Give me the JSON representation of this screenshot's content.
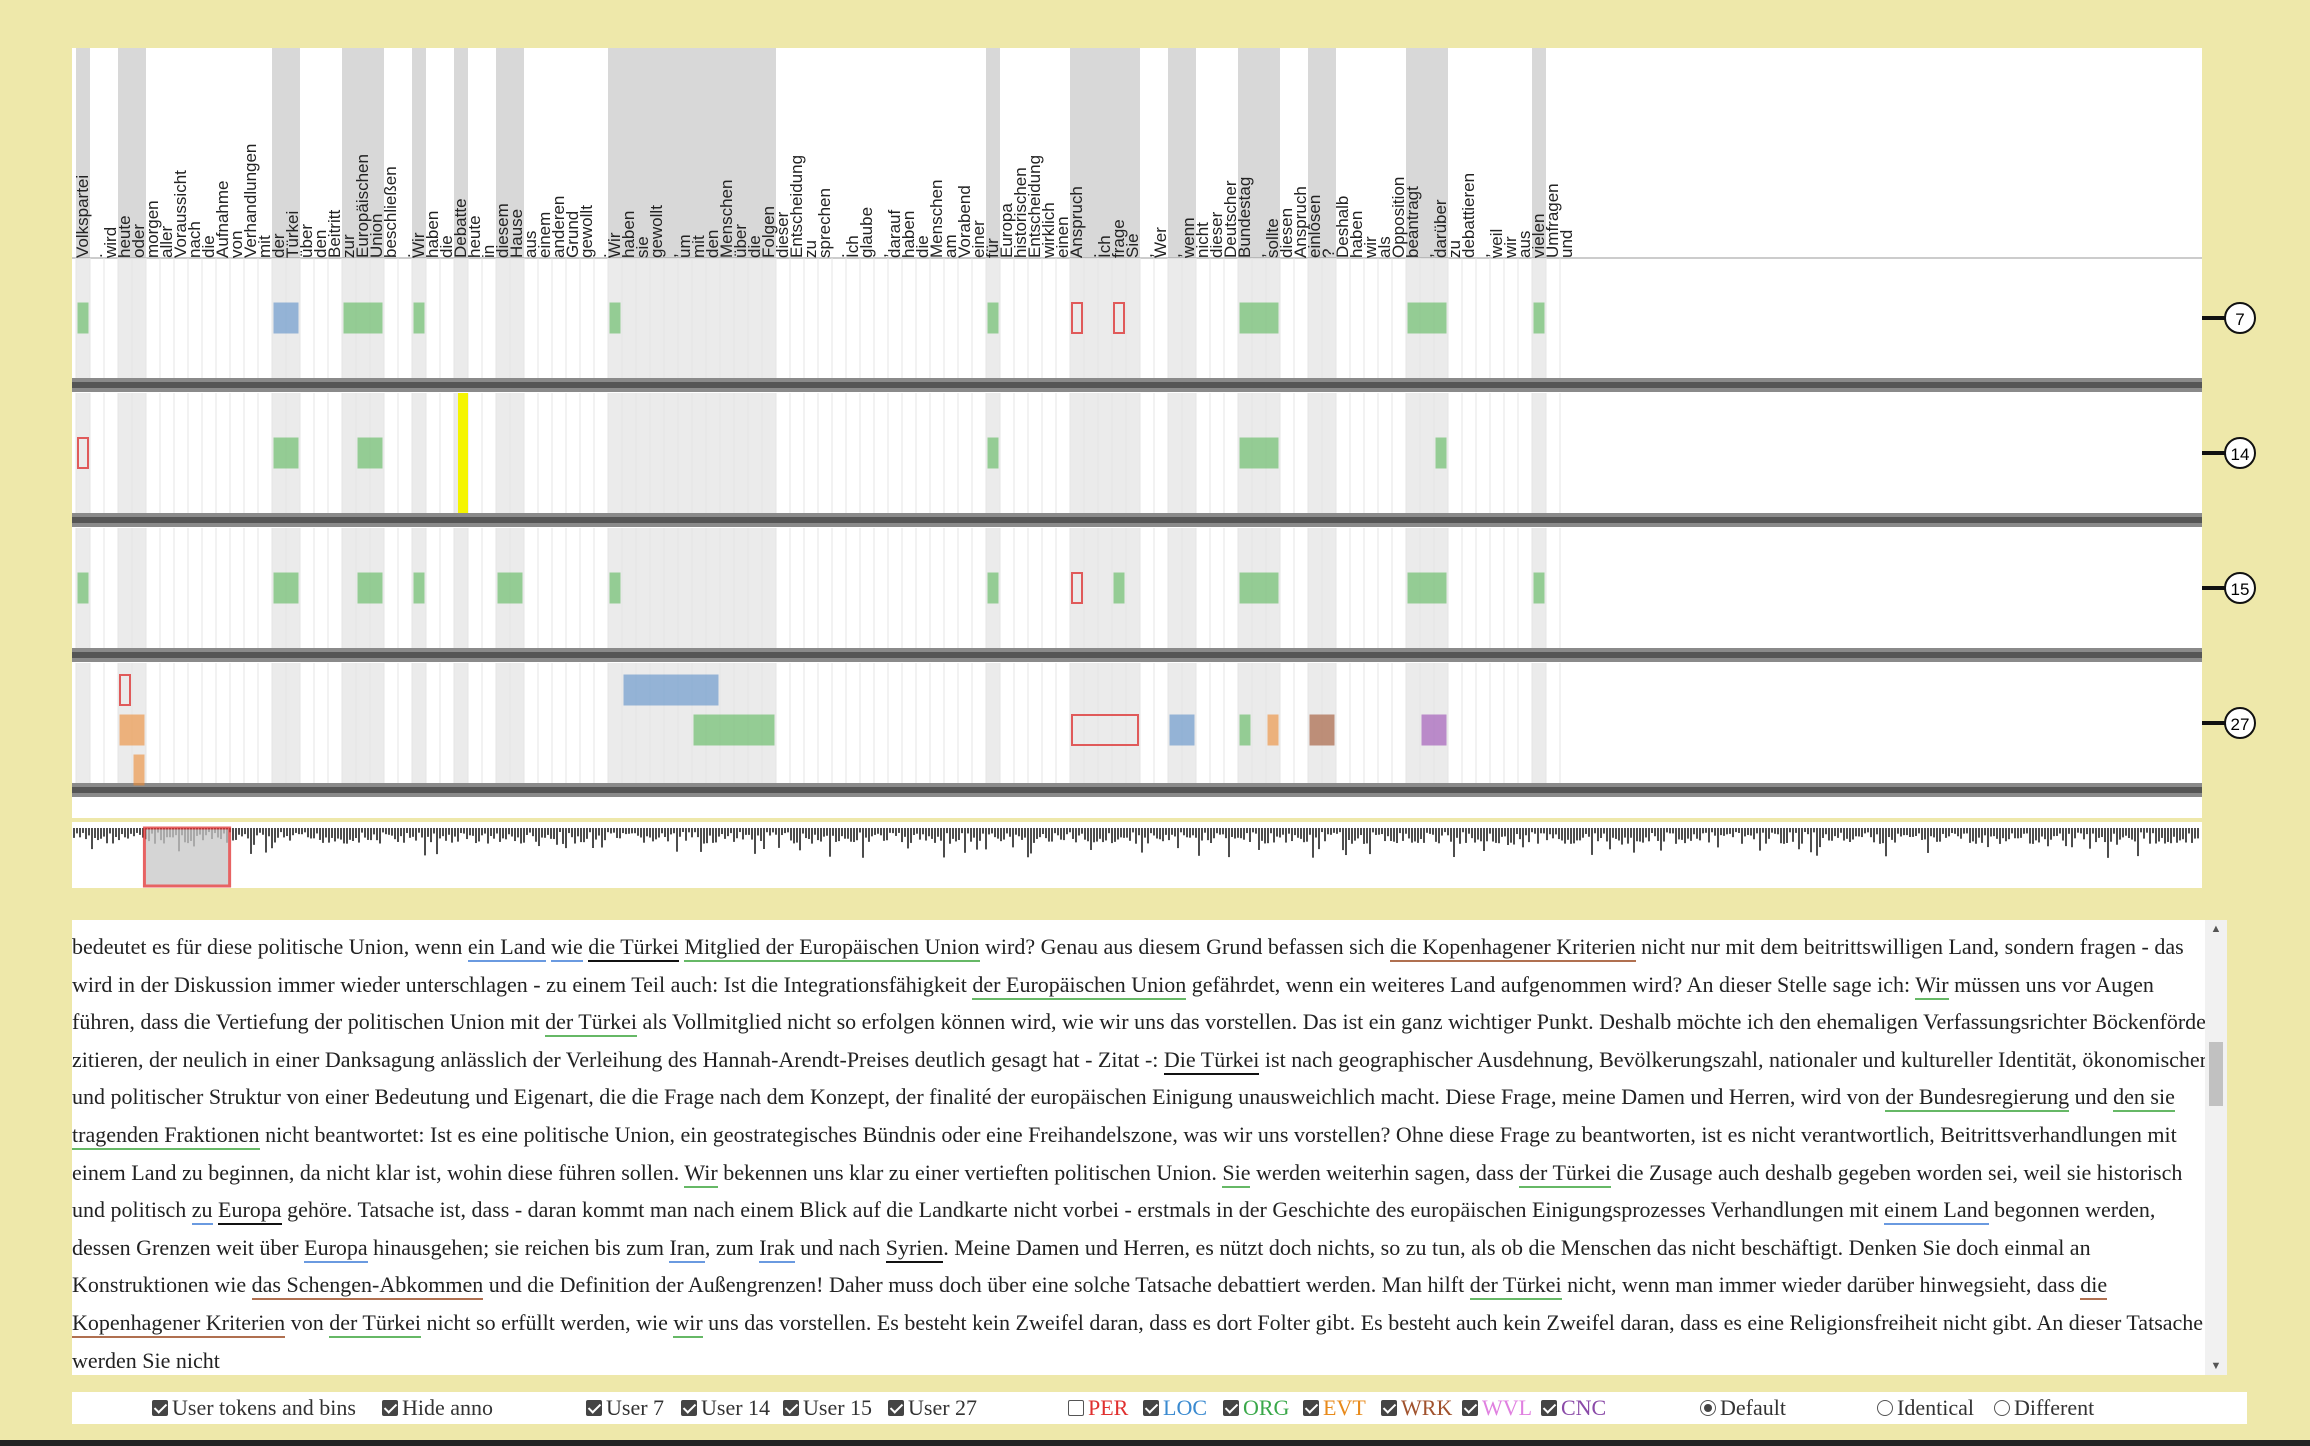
{
  "tokens": [
    "Volkspartei",
    ".",
    "wird",
    "heute",
    "oder",
    "morgen",
    "aller",
    "Voraussicht",
    "nach",
    "die",
    "Aufnahme",
    "von",
    "Verhandlungen",
    "mit",
    "der",
    "Türkei",
    "über",
    "den",
    "Beitritt",
    "zur",
    "Europäischen",
    "Union",
    "beschließen",
    ".",
    "Wir",
    "haben",
    "die",
    "Debatte",
    "heute",
    "in",
    "diesem",
    "Hause",
    "aus",
    "einem",
    "anderen",
    "Grund",
    "gewollt",
    ".",
    "Wir",
    "haben",
    "sie",
    "gewollt",
    ",",
    "um",
    "mit",
    "den",
    "Menschen",
    "über",
    "die",
    "Folgen",
    "dieser",
    "Entscheidung",
    "zu",
    "sprechen",
    ".",
    "Ich",
    "glaube",
    ",",
    "darauf",
    "haben",
    "die",
    "Menschen",
    "am",
    "Vorabend",
    "einer",
    "für",
    "Europa",
    "historischen",
    "Entscheidung",
    "wirklich",
    "einen",
    "Anspruch",
    ".",
    "Ich",
    "frage",
    "Sie",
    ",",
    "Wer",
    ",",
    "wenn",
    "nicht",
    "dieser",
    "Deutscher",
    "Bundestag",
    ",",
    "sollte",
    "diesen",
    "Anspruch",
    "einlösen",
    "?",
    "Deshalb",
    "haben",
    "wir",
    "als",
    "Opposition",
    "beantragt",
    ",",
    "darüber",
    "zu",
    "debattieren",
    ",",
    "weil",
    "wir",
    "aus",
    "vielen",
    "Umfragen",
    "und"
  ],
  "users": [
    {
      "id": "7",
      "label": "7"
    },
    {
      "id": "14",
      "label": "14"
    },
    {
      "id": "15",
      "label": "15"
    },
    {
      "id": "27",
      "label": "27"
    }
  ],
  "annotations": {
    "7": [
      {
        "type": "ORG",
        "start": 0,
        "end": 0
      },
      {
        "type": "LOC",
        "start": 14,
        "end": 15
      },
      {
        "type": "ORG",
        "start": 19,
        "end": 21
      },
      {
        "type": "ORG",
        "start": 24,
        "end": 24
      },
      {
        "type": "ORG",
        "start": 38,
        "end": 38
      },
      {
        "type": "ORG",
        "start": 65,
        "end": 65
      },
      {
        "type": "PER",
        "start": 71,
        "end": 71
      },
      {
        "type": "PER",
        "start": 74,
        "end": 74
      },
      {
        "type": "ORG",
        "start": 83,
        "end": 85
      },
      {
        "type": "ORG",
        "start": 95,
        "end": 97
      },
      {
        "type": "ORG",
        "start": 104,
        "end": 104
      }
    ],
    "14": [
      {
        "type": "PER",
        "start": 0,
        "end": 0
      },
      {
        "type": "ORG",
        "start": 14,
        "end": 15
      },
      {
        "type": "ORG",
        "start": 20,
        "end": 21
      },
      {
        "type": "HILITE",
        "start": 27,
        "end": 27
      },
      {
        "type": "ORG",
        "start": 65,
        "end": 65
      },
      {
        "type": "ORG",
        "start": 83,
        "end": 85
      },
      {
        "type": "ORG",
        "start": 97,
        "end": 97
      }
    ],
    "15": [
      {
        "type": "ORG",
        "start": 0,
        "end": 0
      },
      {
        "type": "ORG",
        "start": 14,
        "end": 15
      },
      {
        "type": "ORG",
        "start": 20,
        "end": 21
      },
      {
        "type": "ORG",
        "start": 24,
        "end": 24
      },
      {
        "type": "ORG",
        "start": 30,
        "end": 31
      },
      {
        "type": "ORG",
        "start": 38,
        "end": 38
      },
      {
        "type": "ORG",
        "start": 65,
        "end": 65
      },
      {
        "type": "PER",
        "start": 71,
        "end": 71
      },
      {
        "type": "ORG",
        "start": 74,
        "end": 74
      },
      {
        "type": "ORG",
        "start": 83,
        "end": 85
      },
      {
        "type": "ORG",
        "start": 95,
        "end": 97
      },
      {
        "type": "ORG",
        "start": 104,
        "end": 104
      }
    ],
    "27": [
      {
        "type": "PER",
        "start": 3,
        "end": 3,
        "row": 0
      },
      {
        "type": "EVT",
        "start": 3,
        "end": 4,
        "row": 1
      },
      {
        "type": "EVT",
        "start": 4,
        "end": 4,
        "row": 2
      },
      {
        "type": "LOC",
        "start": 39,
        "end": 45,
        "row": 0
      },
      {
        "type": "ORG",
        "start": 44,
        "end": 49,
        "row": 1
      },
      {
        "type": "PER",
        "start": 71,
        "end": 75,
        "row": 1
      },
      {
        "type": "LOC",
        "start": 78,
        "end": 79,
        "row": 1
      },
      {
        "type": "ORG",
        "start": 83,
        "end": 83,
        "row": 1
      },
      {
        "type": "EVT",
        "start": 85,
        "end": 85,
        "row": 1
      },
      {
        "type": "WRK",
        "start": 88,
        "end": 89,
        "row": 1
      },
      {
        "type": "WVL",
        "start": 96,
        "end": 97,
        "row": 1
      }
    ]
  },
  "colors": {
    "PER": "#e05a5a",
    "LOC": "#5b8ec9",
    "ORG": "#5cb85c",
    "EVT": "#ee8b33",
    "WRK": "#a0522d",
    "WVL": "#9a4bb3",
    "CNC": "#7a3e9c",
    "HILITE": "#f5f500"
  },
  "minimap": {
    "window_start_fraction": 0.034,
    "window_end_fraction": 0.074
  },
  "text": {
    "paragraph": [
      {
        "t": "bedeutet es für diese politische Union, wenn "
      },
      {
        "t": "ein Land",
        "e": "loc"
      },
      {
        "t": " "
      },
      {
        "t": "wie",
        "e": "loc"
      },
      {
        "t": " "
      },
      {
        "t": "die Türkei",
        "e": "tk"
      },
      {
        "t": " "
      },
      {
        "t": "Mitglied der Europäischen Union",
        "e": "org"
      },
      {
        "t": " wird? Genau aus diesem Grund befassen sich "
      },
      {
        "t": "die Kopenhagener Kriterien",
        "e": "wrk"
      },
      {
        "t": " nicht nur mit dem beitrittswilligen Land, sondern fragen - das wird in der Diskussion immer wieder unterschlagen - zu einem Teil auch: Ist die Integrationsfähigkeit "
      },
      {
        "t": "der Europäischen Union",
        "e": "org"
      },
      {
        "t": " gefährdet, wenn ein weiteres Land aufgenommen wird? An dieser Stelle sage ich: "
      },
      {
        "t": "Wir",
        "e": "org"
      },
      {
        "t": " müssen uns vor Augen führen, dass die Vertiefung der politischen Union mit "
      },
      {
        "t": "der Türkei",
        "e": "org"
      },
      {
        "t": " als Vollmitglied nicht so erfolgen können wird, wie wir uns das vorstellen. Das ist ein ganz wichtiger Punkt. Deshalb möchte ich den ehemaligen Verfassungsrichter Böckenförde zitieren, der neulich in einer Danksagung anlässlich der Verleihung des Hannah-Arendt-Preises deutlich gesagt hat - Zitat -: "
      },
      {
        "t": "Die Türkei",
        "e": "tk"
      },
      {
        "t": " ist nach geographischer Ausdehnung, Bevölkerungszahl, nationaler und kultureller Identität, ökonomischer und politischer Struktur von einer Bedeutung und Eigenart, die die Frage nach dem Konzept, der finalité der europäischen Einigung unausweichlich macht. Diese Frage, meine Damen und Herren, wird von "
      },
      {
        "t": "der Bundesregierung",
        "e": "org"
      },
      {
        "t": " und "
      },
      {
        "t": "den sie tragenden Fraktionen",
        "e": "org"
      },
      {
        "t": " nicht beantwortet: Ist es eine politische Union, ein geostrategisches Bündnis oder eine Freihandelszone, was wir uns vorstellen? Ohne diese Frage zu beantworten, ist es nicht verantwortlich, Beitrittsverhandlungen mit einem Land zu beginnen, da nicht klar ist, wohin diese führen sollen. "
      },
      {
        "t": "Wir",
        "e": "org"
      },
      {
        "t": " bekennen uns klar zu einer vertieften politischen Union. "
      },
      {
        "t": "Sie",
        "e": "org"
      },
      {
        "t": " werden weiterhin sagen, dass "
      },
      {
        "t": "der Türkei",
        "e": "org"
      },
      {
        "t": " die Zusage auch deshalb gegeben worden sei, weil sie historisch und politisch "
      },
      {
        "t": "zu",
        "e": "loc"
      },
      {
        "t": " "
      },
      {
        "t": "Europa",
        "e": "tk"
      },
      {
        "t": " gehöre. Tatsache ist, dass - daran kommt man nach einem Blick auf die Landkarte nicht vorbei - erstmals in der Geschichte des europäischen Einigungsprozesses Verhandlungen mit "
      },
      {
        "t": "einem Land",
        "e": "loc"
      },
      {
        "t": " begonnen werden, dessen Grenzen weit über "
      },
      {
        "t": "Europa",
        "e": "loc"
      },
      {
        "t": " hinausgehen; sie reichen bis zum "
      },
      {
        "t": "Iran",
        "e": "loc"
      },
      {
        "t": ", zum "
      },
      {
        "t": "Irak",
        "e": "loc"
      },
      {
        "t": " und nach "
      },
      {
        "t": "Syrien",
        "e": "tk"
      },
      {
        "t": ". Meine Damen und Herren, es nützt doch nichts, so zu tun, als ob die Menschen das nicht beschäftigt. Denken Sie doch einmal an Konstruktionen wie "
      },
      {
        "t": "das Schengen-Abkommen",
        "e": "wrk"
      },
      {
        "t": " und die Definition der Außengrenzen! Daher muss doch über eine solche Tatsache debattiert werden. Man hilft "
      },
      {
        "t": "der Türkei",
        "e": "org"
      },
      {
        "t": " nicht, wenn man immer wieder darüber hinwegsieht, dass "
      },
      {
        "t": "die Kopenhagener Kriterien",
        "e": "wrk"
      },
      {
        "t": " von "
      },
      {
        "t": "der Türkei",
        "e": "org"
      },
      {
        "t": " nicht so erfüllt werden, wie "
      },
      {
        "t": "wir",
        "e": "org"
      },
      {
        "t": " uns das vorstellen. Es besteht kein Zweifel daran, dass es dort Folter gibt. Es besteht auch kein Zweifel daran, dass es eine Religionsfreiheit nicht gibt. An dieser Tatsache werden Sie nicht"
      }
    ]
  },
  "controls": {
    "user_tokens_bins": {
      "label": "User tokens and bins",
      "checked": true
    },
    "hide_anno": {
      "label": "Hide anno",
      "checked": true
    },
    "user7": {
      "label": "User 7",
      "checked": true
    },
    "user14": {
      "label": "User 14",
      "checked": true
    },
    "user15": {
      "label": "User 15",
      "checked": true
    },
    "user27": {
      "label": "User 27",
      "checked": true
    },
    "per": {
      "label": "PER",
      "checked": false,
      "color": "#e0302f"
    },
    "loc": {
      "label": "LOC",
      "checked": true,
      "color": "#3a8ad0"
    },
    "org": {
      "label": "ORG",
      "checked": true,
      "color": "#3aa84a"
    },
    "evt": {
      "label": "EVT",
      "checked": true,
      "color": "#e88a1a"
    },
    "wrk": {
      "label": "WRK",
      "checked": true,
      "color": "#a0522d"
    },
    "wvl": {
      "label": "WVL",
      "checked": true,
      "color": "#e080e0"
    },
    "cnc": {
      "label": "CNC",
      "checked": true,
      "color": "#8a4aa8"
    },
    "default": {
      "label": "Default",
      "checked": true
    },
    "identical": {
      "label": "Identical",
      "checked": false
    },
    "different": {
      "label": "Different",
      "checked": false
    }
  }
}
